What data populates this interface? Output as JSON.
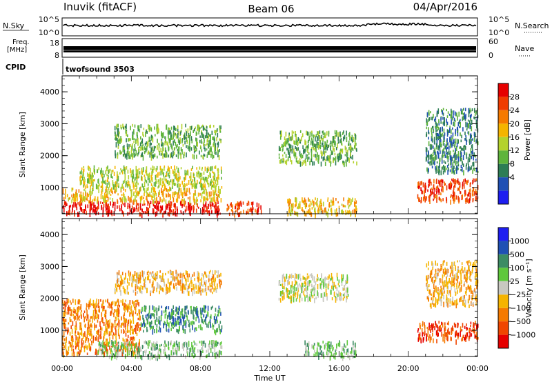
{
  "header": {
    "station": "Inuvik (fitACF)",
    "beam": "Beam 06",
    "date": "04/Apr/2016"
  },
  "nsky_panel": {
    "left_label": "N.Sky",
    "left_ticks": [
      "10^5",
      "10^0"
    ],
    "right_ticks": [
      "10^5",
      "10^0"
    ],
    "right_label": "N.Search"
  },
  "freq_panel": {
    "left_label_1": "Freq.",
    "left_label_2": "[MHz]",
    "left_ticks": [
      "18",
      "8"
    ],
    "right_ticks": [
      "60",
      "0"
    ],
    "right_label": "Nave"
  },
  "cpid": {
    "label": "CPID",
    "value": "twofsound 3503"
  },
  "chart_data": [
    {
      "type": "heatmap",
      "name": "power",
      "ylabel": "Slant Range [km]",
      "yticks": [
        "4000",
        "3000",
        "2000",
        "1000"
      ],
      "ylim": [
        180,
        4500
      ],
      "xlim": [
        0,
        24
      ],
      "colorbar_label": "Power [dB]",
      "colorbar_ticks": [
        "28",
        "24",
        "20",
        "16",
        "12",
        "8",
        "4"
      ],
      "colors": [
        "#1e1ef0",
        "#1f50b4",
        "#2d7d55",
        "#5fb43c",
        "#b4d22d",
        "#f5b400",
        "#f57a00",
        "#f03c00",
        "#e60000"
      ],
      "regions": [
        {
          "t0": 0.0,
          "t1": 9.2,
          "r0": 200,
          "r1": 600,
          "level": 8
        },
        {
          "t0": 0.0,
          "t1": 9.2,
          "r0": 600,
          "r1": 1000,
          "level": 5
        },
        {
          "t0": 1.0,
          "t1": 9.2,
          "r0": 1000,
          "r1": 1700,
          "level": 4
        },
        {
          "t0": 3.0,
          "t1": 9.2,
          "r0": 2000,
          "r1": 3000,
          "level": 3
        },
        {
          "t0": 9.5,
          "t1": 11.5,
          "r0": 200,
          "r1": 600,
          "level": 7
        },
        {
          "t0": 12.5,
          "t1": 17.0,
          "r0": 1800,
          "r1": 2800,
          "level": 3
        },
        {
          "t0": 13.0,
          "t1": 17.0,
          "r0": 200,
          "r1": 700,
          "level": 5
        },
        {
          "t0": 20.5,
          "t1": 24.0,
          "r0": 600,
          "r1": 1300,
          "level": 7
        },
        {
          "t0": 21.0,
          "t1": 24.0,
          "r0": 1500,
          "r1": 3500,
          "level": 2
        }
      ]
    },
    {
      "type": "heatmap",
      "name": "velocity",
      "ylabel": "Slant Range [km]",
      "yticks": [
        "4000",
        "3000",
        "2000",
        "1000"
      ],
      "ylim": [
        180,
        4500
      ],
      "xlim": [
        0,
        24
      ],
      "xticks": [
        "00:00",
        "04:00",
        "08:00",
        "12:00",
        "16:00",
        "20:00",
        "00:00"
      ],
      "xlabel": "Time UT",
      "colorbar_label": "Velocity [m s⁻¹]",
      "colorbar_ticks": [
        "1000",
        "500",
        "100",
        "25",
        "−25",
        "−100",
        "−500",
        "−1000"
      ],
      "colors": [
        "#e60000",
        "#f04600",
        "#f57a00",
        "#f5b400",
        "#c8c8c0",
        "#5fc83c",
        "#3c8c64",
        "#1f50b4",
        "#1e1ef0"
      ],
      "regions": [
        {
          "t0": 0.0,
          "t1": 4.5,
          "r0": 300,
          "r1": 2000,
          "level": 2
        },
        {
          "t0": 4.5,
          "t1": 9.2,
          "r0": 1000,
          "r1": 1800,
          "level": 6
        },
        {
          "t0": 2.0,
          "t1": 9.2,
          "r0": 200,
          "r1": 700,
          "level": 5
        },
        {
          "t0": 3.0,
          "t1": 9.2,
          "r0": 2200,
          "r1": 2900,
          "level": 3
        },
        {
          "t0": 12.5,
          "t1": 16.5,
          "r0": 2000,
          "r1": 2800,
          "level": 4
        },
        {
          "t0": 14.0,
          "t1": 17.0,
          "r0": 200,
          "r1": 700,
          "level": 5
        },
        {
          "t0": 20.5,
          "t1": 24.0,
          "r0": 700,
          "r1": 1300,
          "level": 1
        },
        {
          "t0": 21.0,
          "t1": 24.0,
          "r0": 1800,
          "r1": 3200,
          "level": 3
        }
      ]
    }
  ]
}
